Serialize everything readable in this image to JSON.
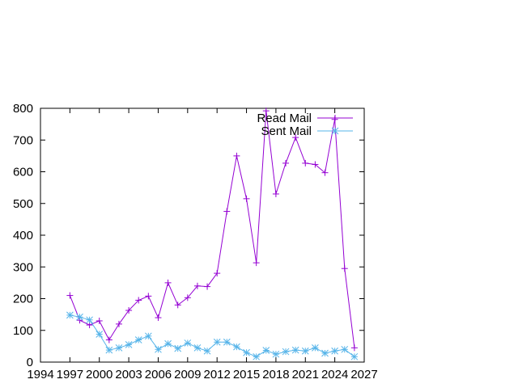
{
  "chart_data": {
    "type": "line",
    "xlim": [
      1994,
      2027
    ],
    "ylim": [
      0,
      800
    ],
    "x_ticks": [
      1994,
      1997,
      2000,
      2003,
      2006,
      2009,
      2012,
      2015,
      2018,
      2021,
      2024,
      2027
    ],
    "y_ticks": [
      0,
      100,
      200,
      300,
      400,
      500,
      600,
      700,
      800
    ],
    "grid": false,
    "legend_position": "top-right",
    "series": [
      {
        "name": "Read Mail",
        "color": "#9400D3",
        "marker": "plus",
        "x": [
          1997,
          1998,
          1999,
          2000,
          2001,
          2002,
          2003,
          2004,
          2005,
          2006,
          2007,
          2008,
          2009,
          2010,
          2011,
          2012,
          2013,
          2014,
          2015,
          2016,
          2017,
          2018,
          2019,
          2020,
          2021,
          2022,
          2023,
          2024,
          2025,
          2026
        ],
        "values": [
          210,
          132,
          117,
          130,
          70,
          120,
          163,
          195,
          208,
          140,
          250,
          180,
          203,
          240,
          238,
          280,
          475,
          650,
          515,
          313,
          792,
          530,
          627,
          708,
          627,
          623,
          597,
          765,
          295,
          45
        ]
      },
      {
        "name": "Sent Mail",
        "color": "#56B4E9",
        "marker": "star",
        "x": [
          1997,
          1998,
          1999,
          2000,
          2001,
          2002,
          2003,
          2004,
          2005,
          2006,
          2007,
          2008,
          2009,
          2010,
          2011,
          2012,
          2013,
          2014,
          2015,
          2016,
          2017,
          2018,
          2019,
          2020,
          2021,
          2022,
          2023,
          2024,
          2025,
          2026
        ],
        "values": [
          148,
          142,
          133,
          88,
          38,
          45,
          55,
          70,
          82,
          40,
          58,
          43,
          60,
          45,
          35,
          63,
          63,
          48,
          30,
          17,
          37,
          25,
          33,
          38,
          35,
          45,
          28,
          35,
          40,
          17
        ]
      }
    ]
  }
}
